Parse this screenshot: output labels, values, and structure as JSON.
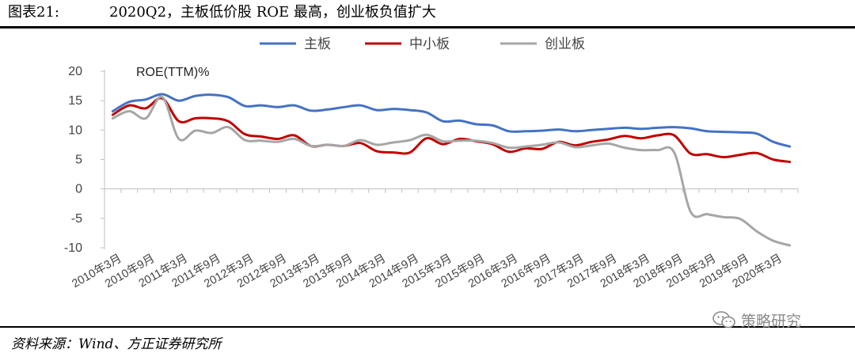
{
  "header": {
    "figure_number": "图表21:",
    "title": "2020Q2，主板低价股 ROE 最高，创业板负值扩大"
  },
  "footer": {
    "source": "资料来源：Wind、方正证券研究所"
  },
  "watermark": {
    "text": "策略研究",
    "icon": "wechat-icon"
  },
  "chart_data": {
    "type": "line",
    "title": "2020Q2，主板低价股 ROE 最高，创业板负值扩大",
    "ylabel": "ROE(TTM)%",
    "xlabel": "",
    "ylim": [
      -10,
      20
    ],
    "yticks": [
      -10,
      -5,
      0,
      5,
      10,
      15,
      20
    ],
    "grid": false,
    "legend_position": "top-center",
    "x_tick_labels": [
      "2010年3月",
      "2010年9月",
      "2011年3月",
      "2011年9月",
      "2012年3月",
      "2012年9月",
      "2013年3月",
      "2013年9月",
      "2014年3月",
      "2014年9月",
      "2015年3月",
      "2015年9月",
      "2016年3月",
      "2016年9月",
      "2017年3月",
      "2017年9月",
      "2018年3月",
      "2018年9月",
      "2019年3月",
      "2019年9月",
      "2020年3月"
    ],
    "x": [
      "2010-03",
      "2010-06",
      "2010-09",
      "2010-12",
      "2011-03",
      "2011-06",
      "2011-09",
      "2011-12",
      "2012-03",
      "2012-06",
      "2012-09",
      "2012-12",
      "2013-03",
      "2013-06",
      "2013-09",
      "2013-12",
      "2014-03",
      "2014-06",
      "2014-09",
      "2014-12",
      "2015-03",
      "2015-06",
      "2015-09",
      "2015-12",
      "2016-03",
      "2016-06",
      "2016-09",
      "2016-12",
      "2017-03",
      "2017-06",
      "2017-09",
      "2017-12",
      "2018-03",
      "2018-06",
      "2018-09",
      "2018-12",
      "2019-03",
      "2019-06",
      "2019-09",
      "2019-12",
      "2020-03",
      "2020-06"
    ],
    "series": [
      {
        "name": "主板",
        "color": "#4472C4",
        "values": [
          13.2,
          14.8,
          15.2,
          16.1,
          15.0,
          15.8,
          16.0,
          15.6,
          14.1,
          14.2,
          13.9,
          14.2,
          13.3,
          13.5,
          13.9,
          14.2,
          13.4,
          13.6,
          13.4,
          13.0,
          11.5,
          11.6,
          11.0,
          10.8,
          9.8,
          9.8,
          9.9,
          10.1,
          9.8,
          10.0,
          10.2,
          10.4,
          10.2,
          10.4,
          10.5,
          10.3,
          9.8,
          9.7,
          9.6,
          9.4,
          8.0,
          7.2
        ]
      },
      {
        "name": "中小板",
        "color": "#C00000",
        "values": [
          12.6,
          14.2,
          13.7,
          15.4,
          11.5,
          12.0,
          12.0,
          11.5,
          9.3,
          8.9,
          8.5,
          9.1,
          7.3,
          7.5,
          7.3,
          7.8,
          6.4,
          6.2,
          6.2,
          8.6,
          7.6,
          8.5,
          8.1,
          7.6,
          6.3,
          6.9,
          6.8,
          8.0,
          7.4,
          8.0,
          8.4,
          9.0,
          8.6,
          9.1,
          9.1,
          6.0,
          5.9,
          5.4,
          5.8,
          6.1,
          5.0,
          4.6
        ]
      },
      {
        "name": "创业板",
        "color": "#A6A6A6",
        "values": [
          12.0,
          13.2,
          12.0,
          15.6,
          8.5,
          9.9,
          9.5,
          10.5,
          8.3,
          8.2,
          8.0,
          8.5,
          7.3,
          7.5,
          7.3,
          8.3,
          7.5,
          7.9,
          8.3,
          9.2,
          8.1,
          8.2,
          8.2,
          7.8,
          7.0,
          7.2,
          7.5,
          7.9,
          7.1,
          7.4,
          7.7,
          7.0,
          6.6,
          6.6,
          6.2,
          -3.9,
          -4.3,
          -4.8,
          -5.1,
          -7.2,
          -8.8,
          -9.6
        ]
      }
    ]
  }
}
